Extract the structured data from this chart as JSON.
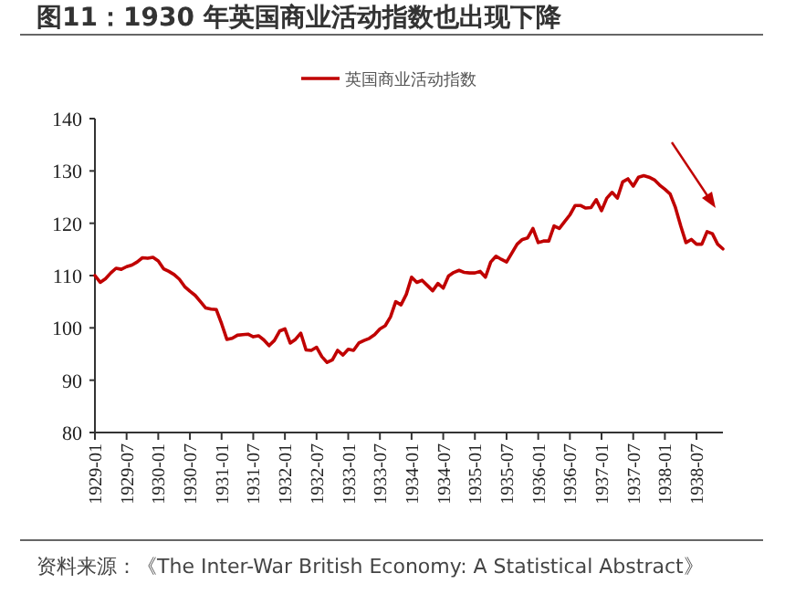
{
  "chart_data": {
    "type": "line",
    "title": "图11：1930 年英国商业活动指数也出现下降",
    "annotations": [
      "资料来源：《The Inter-War British Economy: A Statistical Abstract》"
    ],
    "x": [
      "1929-01",
      "1929-02",
      "1929-03",
      "1929-04",
      "1929-05",
      "1929-06",
      "1929-07",
      "1929-08",
      "1929-09",
      "1929-10",
      "1929-11",
      "1929-12",
      "1930-01",
      "1930-02",
      "1930-03",
      "1930-04",
      "1930-05",
      "1930-06",
      "1930-07",
      "1930-08",
      "1930-09",
      "1930-10",
      "1930-11",
      "1930-12",
      "1931-01",
      "1931-02",
      "1931-03",
      "1931-04",
      "1931-05",
      "1931-06",
      "1931-07",
      "1931-08",
      "1931-09",
      "1931-10",
      "1931-11",
      "1931-12",
      "1932-01",
      "1932-02",
      "1932-03",
      "1932-04",
      "1932-05",
      "1932-06",
      "1932-07",
      "1932-08",
      "1932-09",
      "1932-10",
      "1932-11",
      "1932-12",
      "1933-01",
      "1933-02",
      "1933-03",
      "1933-04",
      "1933-05",
      "1933-06",
      "1933-07",
      "1933-08",
      "1933-09",
      "1933-10",
      "1933-11",
      "1933-12",
      "1934-01",
      "1934-02",
      "1934-03",
      "1934-04",
      "1934-05",
      "1934-06",
      "1934-07",
      "1934-08",
      "1934-09",
      "1934-10",
      "1934-11",
      "1934-12",
      "1935-01",
      "1935-02",
      "1935-03",
      "1935-04",
      "1935-05",
      "1935-06",
      "1935-07",
      "1935-08",
      "1935-09",
      "1935-10",
      "1935-11",
      "1935-12",
      "1936-01",
      "1936-02",
      "1936-03",
      "1936-04",
      "1936-05",
      "1936-06",
      "1936-07",
      "1936-08",
      "1936-09",
      "1936-10",
      "1936-11",
      "1936-12",
      "1937-01",
      "1937-02",
      "1937-03",
      "1937-04",
      "1937-05",
      "1937-06",
      "1937-07",
      "1937-08",
      "1937-09",
      "1937-10",
      "1937-11",
      "1937-12",
      "1938-01",
      "1938-02",
      "1938-03",
      "1938-04",
      "1938-05",
      "1938-06",
      "1938-07",
      "1938-08",
      "1938-09",
      "1938-10",
      "1938-11",
      "1938-12"
    ],
    "series": [
      {
        "name": "英国商业活动指数",
        "color": "#c00000",
        "values": [
          110.0,
          108.7,
          109.4,
          110.5,
          111.4,
          111.2,
          111.7,
          112.0,
          112.6,
          113.4,
          113.3,
          113.5,
          112.8,
          111.3,
          110.8,
          110.2,
          109.3,
          107.9,
          107.0,
          106.2,
          105.0,
          103.8,
          103.6,
          103.5,
          100.8,
          97.8,
          98.0,
          98.6,
          98.7,
          98.8,
          98.3,
          98.5,
          97.7,
          96.6,
          97.6,
          99.4,
          99.8,
          97.1,
          97.8,
          99.0,
          95.8,
          95.7,
          96.3,
          94.5,
          93.4,
          93.9,
          95.7,
          94.8,
          95.9,
          95.7,
          97.1,
          97.6,
          98.0,
          98.7,
          99.8,
          100.4,
          102.1,
          105.0,
          104.4,
          106.4,
          109.7,
          108.7,
          109.1,
          108.1,
          107.1,
          108.5,
          107.6,
          109.9,
          110.6,
          111.0,
          110.6,
          110.5,
          110.5,
          110.8,
          109.7,
          112.6,
          113.7,
          113.1,
          112.6,
          114.3,
          116.0,
          116.9,
          117.2,
          119.0,
          116.3,
          116.6,
          116.6,
          119.5,
          119.0,
          120.3,
          121.6,
          123.4,
          123.4,
          122.9,
          123.0,
          124.5,
          122.4,
          124.8,
          125.9,
          124.8,
          127.9,
          128.5,
          127.1,
          128.8,
          129.1,
          128.8,
          128.3,
          127.3,
          126.5,
          125.6,
          123.0,
          119.5,
          116.3,
          116.9,
          116.0,
          116.0,
          118.4,
          118.0,
          116.0,
          115.1
        ]
      }
    ],
    "xlim": [
      "1929-01",
      "1938-12"
    ],
    "xticks": [
      "1929-01",
      "1929-07",
      "1930-01",
      "1930-07",
      "1931-01",
      "1931-07",
      "1932-01",
      "1932-07",
      "1933-01",
      "1933-07",
      "1934-01",
      "1934-07",
      "1935-01",
      "1935-07",
      "1936-01",
      "1936-07",
      "1937-01",
      "1937-07",
      "1938-01",
      "1938-07"
    ],
    "ylim": [
      80,
      140
    ],
    "yticks": [
      80,
      90,
      100,
      110,
      120,
      130,
      140
    ],
    "grid": false,
    "legend": "top",
    "marker": "none",
    "line_style": "solid"
  }
}
